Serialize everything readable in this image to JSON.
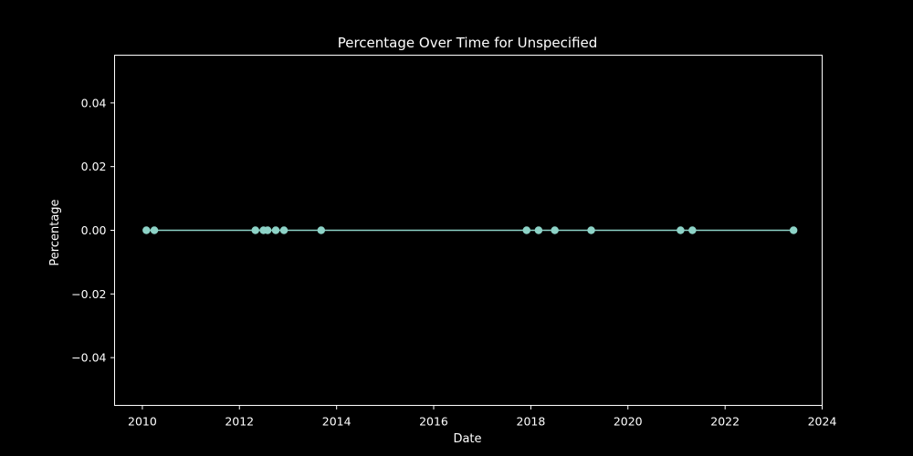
{
  "chart_data": {
    "type": "line",
    "title": "Percentage Over Time for Unspecified",
    "xlabel": "Date",
    "ylabel": "Percentage",
    "xlim": [
      "2009-06-06",
      "2024-01-01"
    ],
    "ylim": [
      -0.055,
      0.055
    ],
    "x_ticks": [
      "2010",
      "2012",
      "2014",
      "2016",
      "2018",
      "2020",
      "2022",
      "2024"
    ],
    "y_ticks": [
      "0.04",
      "0.02",
      "0.00",
      "−0.02",
      "−0.04"
    ],
    "grid": false,
    "series": [
      {
        "marker": "circle",
        "color": "#8dd3c7",
        "points": [
          {
            "x": "2010-01-31",
            "y": 0.0
          },
          {
            "x": "2010-04-01",
            "y": 0.0
          },
          {
            "x": "2012-04-30",
            "y": 0.0
          },
          {
            "x": "2012-06-30",
            "y": 0.0
          },
          {
            "x": "2012-07-31",
            "y": 0.0
          },
          {
            "x": "2012-09-30",
            "y": 0.0
          },
          {
            "x": "2012-12-01",
            "y": 0.0
          },
          {
            "x": "2013-09-07",
            "y": 0.0
          },
          {
            "x": "2017-11-30",
            "y": 0.0
          },
          {
            "x": "2018-02-28",
            "y": 0.0
          },
          {
            "x": "2018-06-30",
            "y": 0.0
          },
          {
            "x": "2019-03-31",
            "y": 0.0
          },
          {
            "x": "2021-01-31",
            "y": 0.0
          },
          {
            "x": "2021-04-30",
            "y": 0.0
          },
          {
            "x": "2023-05-31",
            "y": 0.0
          }
        ]
      }
    ]
  },
  "colors": {
    "background": "#000000",
    "axes": "#ffffff",
    "series": "#8dd3c7"
  }
}
